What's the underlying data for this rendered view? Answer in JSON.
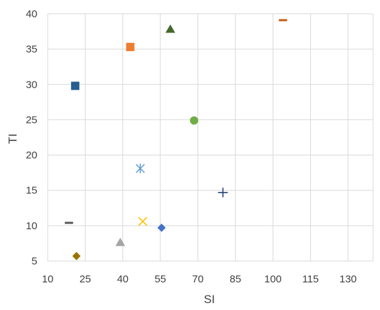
{
  "chart_data": {
    "type": "scatter",
    "title": "",
    "xlabel": "SI",
    "ylabel": "TI",
    "xlim": [
      10,
      140
    ],
    "ylim": [
      5,
      40
    ],
    "x_ticks": [
      10,
      25,
      40,
      55,
      70,
      85,
      100,
      115,
      130
    ],
    "y_ticks": [
      5,
      10,
      15,
      20,
      25,
      30,
      35,
      40
    ],
    "grid": true,
    "legend": "none",
    "series": [
      {
        "x": 21.5,
        "y": 5.7,
        "marker": "diamond",
        "color": "#997300"
      },
      {
        "x": 39.0,
        "y": 7.6,
        "marker": "triangle",
        "color": "#a5a5a5"
      },
      {
        "x": 55.5,
        "y": 9.7,
        "marker": "diamond",
        "color": "#4472c4"
      },
      {
        "x": 48.0,
        "y": 10.6,
        "marker": "x",
        "color": "#ffc000"
      },
      {
        "x": 18.5,
        "y": 10.4,
        "marker": "dash",
        "color": "#595959"
      },
      {
        "x": 80.0,
        "y": 14.7,
        "marker": "plus",
        "color": "#264478"
      },
      {
        "x": 47.0,
        "y": 18.1,
        "marker": "star",
        "color": "#5b9bd5"
      },
      {
        "x": 68.5,
        "y": 24.9,
        "marker": "circle",
        "color": "#70ad47"
      },
      {
        "x": 21.0,
        "y": 29.8,
        "marker": "square",
        "color": "#255e91"
      },
      {
        "x": 43.0,
        "y": 35.3,
        "marker": "square",
        "color": "#ed7d31"
      },
      {
        "x": 59.0,
        "y": 37.8,
        "marker": "triangle",
        "color": "#43682b"
      },
      {
        "x": 104.0,
        "y": 39.1,
        "marker": "dash",
        "color": "#c55a11"
      }
    ]
  },
  "style": {
    "grid_color": "#d9d9d9",
    "text_color": "#404040"
  }
}
